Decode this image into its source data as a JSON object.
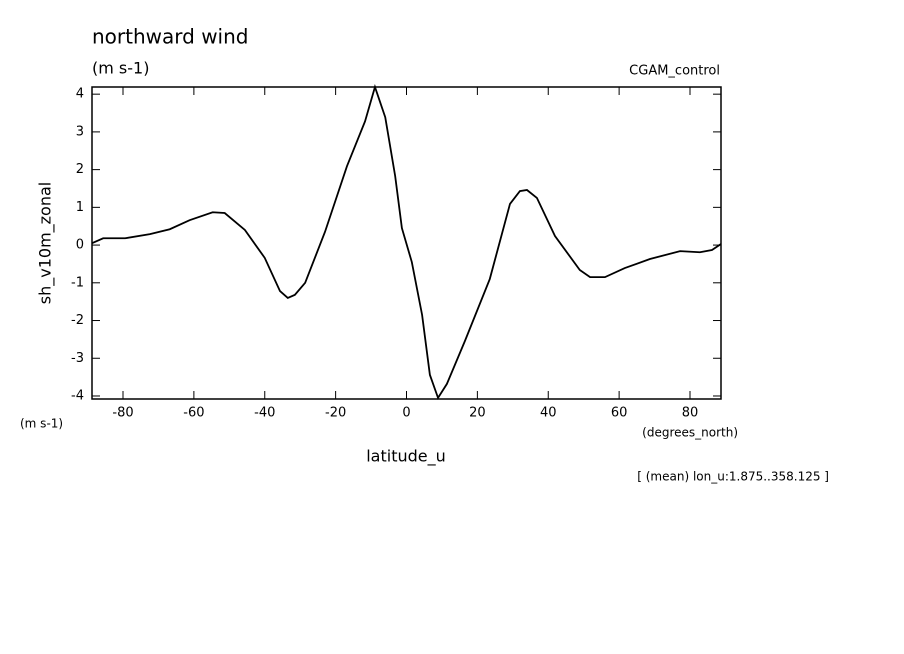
{
  "chart_data": {
    "type": "line",
    "title": "northward wind",
    "subtitle": "(m s-1)",
    "dataset": "CGAM_control",
    "y_label": "sh_v10m_zonal",
    "y_unit": "(m s-1)",
    "x_label": "latitude_u",
    "x_unit": "(degrees_north)",
    "note": "[ (mean) lon_u:1.875..358.125 ]",
    "x": [
      -88.75,
      -85.6,
      -79.4,
      -72.4,
      -66.8,
      -61.2,
      -54.7,
      -51.3,
      -45.6,
      -40,
      -35.7,
      -33.5,
      -31.5,
      -28.6,
      -23,
      -16.8,
      -11.7,
      -8.9,
      -6,
      -3.2,
      -1.3,
      1.5,
      4.4,
      6.6,
      8.9,
      11.4,
      16.5,
      23.5,
      29.2,
      32,
      34,
      36.8,
      41.9,
      48.9,
      51.8,
      56,
      61.6,
      68.7,
      77.2,
      82.8,
      86.2,
      88.75
    ],
    "series": [
      {
        "name": "sh_v10m_zonal",
        "color": "#000000",
        "values": [
          0.05,
          0.18,
          0.18,
          0.29,
          0.42,
          0.66,
          0.87,
          0.85,
          0.4,
          -0.34,
          -1.22,
          -1.4,
          -1.32,
          -1.0,
          0.35,
          2.09,
          3.28,
          4.19,
          3.39,
          1.83,
          0.45,
          -0.45,
          -1.85,
          -3.44,
          -4.05,
          -3.68,
          -2.54,
          -0.9,
          1.09,
          1.43,
          1.46,
          1.25,
          0.24,
          -0.66,
          -0.85,
          -0.85,
          -0.61,
          -0.37,
          -0.16,
          -0.19,
          -0.13,
          0.03
        ]
      }
    ],
    "xlim": [
      -88.75,
      88.75
    ],
    "ylim": [
      -4.08,
      4.19
    ],
    "xticks": [
      -80,
      -60,
      -40,
      -20,
      0,
      20,
      40,
      60,
      80
    ],
    "yticks": [
      -4,
      -3,
      -2,
      -1,
      0,
      1,
      2,
      3,
      4
    ],
    "grid": false
  }
}
